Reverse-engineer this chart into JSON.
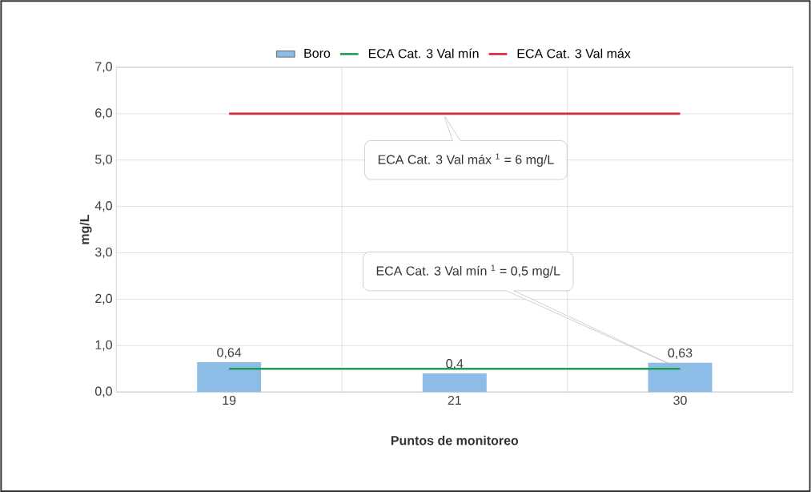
{
  "chart_data": {
    "type": "bar",
    "xlabel": "Puntos de monitoreo",
    "ylabel": "mg/L",
    "categories": [
      "19",
      "21",
      "30"
    ],
    "series": [
      {
        "name": "Boro",
        "color": "#8dbde6",
        "values": [
          0.64,
          0.4,
          0.63
        ],
        "value_labels": [
          "0,64",
          "0,4",
          "0,63"
        ]
      },
      {
        "name": "ECA Cat. 3 Val mín",
        "type": "line",
        "color": "#1e9e55",
        "values": [
          0.5,
          0.5,
          0.5
        ]
      },
      {
        "name": "ECA Cat. 3 Val máx",
        "type": "line",
        "color": "#d7263d",
        "values": [
          6,
          6,
          6
        ]
      }
    ],
    "ylim": [
      0,
      7
    ],
    "yticks": [
      {
        "value": 0,
        "label": "0,0"
      },
      {
        "value": 1,
        "label": "1,0"
      },
      {
        "value": 2,
        "label": "2,0"
      },
      {
        "value": 3,
        "label": "3,0"
      },
      {
        "value": 4,
        "label": "4,0"
      },
      {
        "value": 5,
        "label": "5,0"
      },
      {
        "value": 6,
        "label": "6,0"
      },
      {
        "value": 7,
        "label": "7,0"
      }
    ],
    "grid": true,
    "legend": "top",
    "annotations": [
      "ECA Cat. 3 Val máx $^{1}$ = 6 mg/L",
      "ECA Cat. 3 Val mín $^{1}$ = 0,5 mg/L"
    ]
  }
}
